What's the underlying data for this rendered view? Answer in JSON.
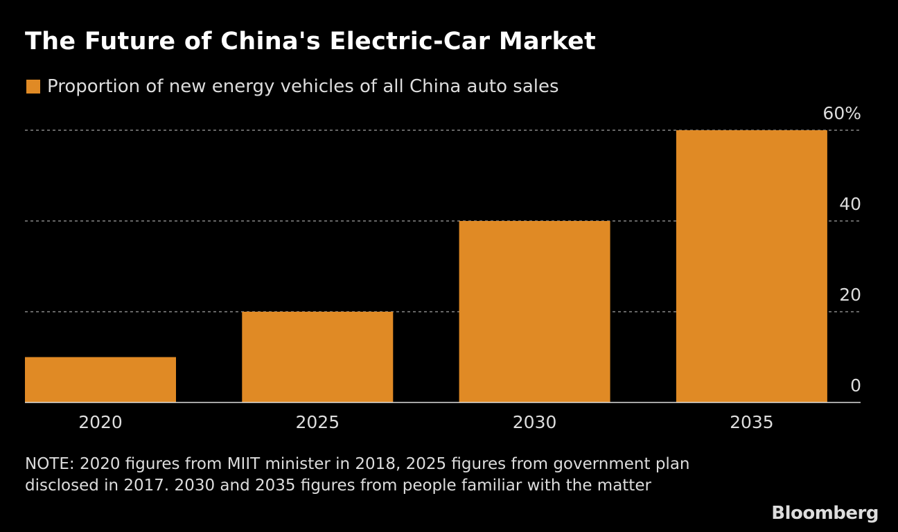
{
  "chart_data": {
    "type": "bar",
    "title": "The Future of China's Electric-Car Market",
    "categories": [
      "2020",
      "2025",
      "2030",
      "2035"
    ],
    "series": [
      {
        "name": "Proportion of new energy vehicles of all China auto sales",
        "values": [
          10,
          20,
          40,
          60
        ],
        "color": "#e08a25"
      }
    ],
    "ylim": [
      0,
      60
    ],
    "yticks": [
      0,
      20,
      40,
      60
    ],
    "ytick_labels": [
      "0",
      "20",
      "40",
      "60%"
    ],
    "grid": true,
    "legend_placement": "top-left",
    "y_axis_side": "right"
  },
  "note": "NOTE: 2020 figures from MIIT minister in 2018, 2025 figures from government plan disclosed in 2017. 2030 and 2035 figures from people familiar with the matter",
  "source_logo": "Bloomberg"
}
